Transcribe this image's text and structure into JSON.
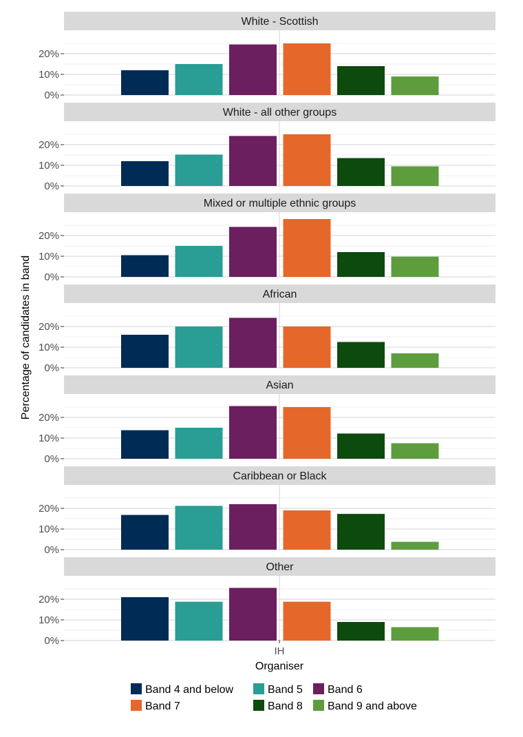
{
  "chart_data": {
    "type": "bar",
    "xlabel": "Organiser",
    "ylabel": "Percentage of candidates in band",
    "categories": [
      "IH"
    ],
    "ylim": [
      0,
      27
    ],
    "y_ticks": [
      "0%",
      "10%",
      "20%"
    ],
    "grid": true,
    "legend_position": "bottom",
    "series": [
      {
        "name": "Band 4 and below",
        "color": "#002b55"
      },
      {
        "name": "Band 5",
        "color": "#2a9d95"
      },
      {
        "name": "Band 6",
        "color": "#6b1f5e"
      },
      {
        "name": "Band 7",
        "color": "#e5672a"
      },
      {
        "name": "Band 8",
        "color": "#0d4a0d"
      },
      {
        "name": "Band 9 and above",
        "color": "#5d9d3e"
      }
    ],
    "panels": [
      {
        "title": "White - Scottish",
        "values": [
          12,
          15,
          24.5,
          25,
          14,
          9
        ]
      },
      {
        "title": "White - all other groups",
        "values": [
          12,
          15.2,
          24.2,
          25,
          13.5,
          9.5
        ]
      },
      {
        "title": "Mixed or multiple ethnic groups",
        "values": [
          10.5,
          15,
          24.2,
          28,
          12,
          9.8
        ]
      },
      {
        "title": "African",
        "values": [
          16,
          20,
          24.2,
          20,
          12.5,
          7
        ]
      },
      {
        "title": "Asian",
        "values": [
          13.8,
          15,
          25.5,
          25,
          12.2,
          7.5
        ]
      },
      {
        "title": "Caribbean or Black",
        "values": [
          16.8,
          21.2,
          22,
          19,
          17.3,
          3.8
        ]
      },
      {
        "title": "Other",
        "values": [
          21,
          18.8,
          25.5,
          18.8,
          9,
          6.5
        ]
      }
    ]
  }
}
